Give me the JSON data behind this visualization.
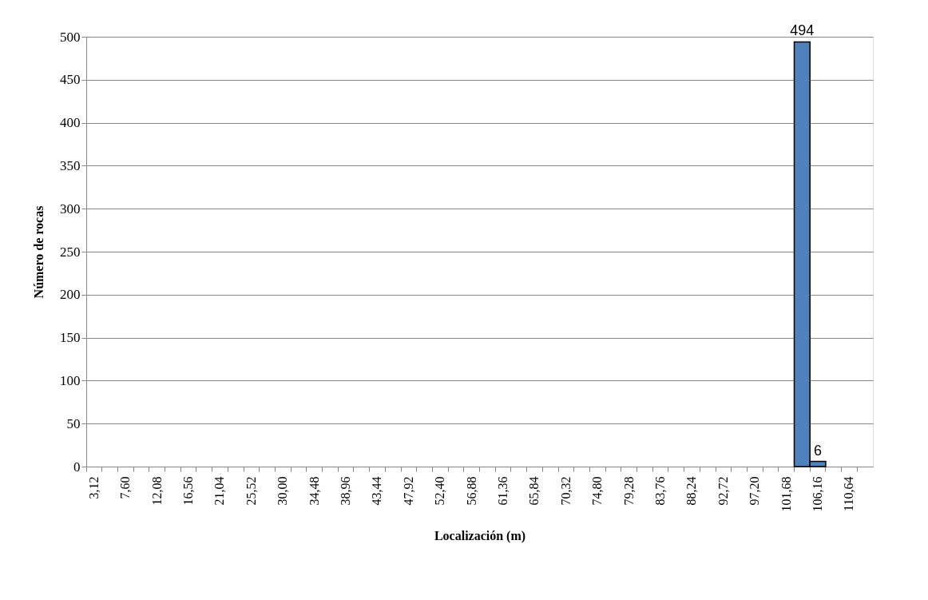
{
  "chart_data": {
    "type": "bar",
    "xlabel": "Localización (m)",
    "ylabel": "Número de rocas",
    "categories": [
      "3,12",
      null,
      "7,60",
      null,
      "12,08",
      null,
      "16,56",
      null,
      "21,04",
      null,
      "25,52",
      null,
      "30,00",
      null,
      "34,48",
      null,
      "38,96",
      null,
      "43,44",
      null,
      "47,92",
      null,
      "52,40",
      null,
      "56,88",
      null,
      "61,36",
      null,
      "65,84",
      null,
      "70,32",
      null,
      "74,80",
      null,
      "79,28",
      null,
      "83,76",
      null,
      "88,24",
      null,
      "92,72",
      null,
      "97,20",
      null,
      "101,68",
      null,
      "106,16",
      null,
      "110,64",
      null
    ],
    "values": [
      0,
      0,
      0,
      0,
      0,
      0,
      0,
      0,
      0,
      0,
      0,
      0,
      0,
      0,
      0,
      0,
      0,
      0,
      0,
      0,
      0,
      0,
      0,
      0,
      0,
      0,
      0,
      0,
      0,
      0,
      0,
      0,
      0,
      0,
      0,
      0,
      0,
      0,
      0,
      0,
      0,
      0,
      0,
      0,
      0,
      494,
      6,
      0,
      0,
      0
    ],
    "value_labels": [
      null,
      null,
      null,
      null,
      null,
      null,
      null,
      null,
      null,
      null,
      null,
      null,
      null,
      null,
      null,
      null,
      null,
      null,
      null,
      null,
      null,
      null,
      null,
      null,
      null,
      null,
      null,
      null,
      null,
      null,
      null,
      null,
      null,
      null,
      null,
      null,
      null,
      null,
      null,
      null,
      null,
      null,
      null,
      null,
      null,
      "494",
      "6",
      null,
      null,
      null
    ],
    "color": "#4f81bd",
    "ylim": [
      0,
      500
    ],
    "yticks": [
      0,
      50,
      100,
      150,
      200,
      250,
      300,
      350,
      400,
      450,
      500
    ],
    "grid": "y"
  }
}
